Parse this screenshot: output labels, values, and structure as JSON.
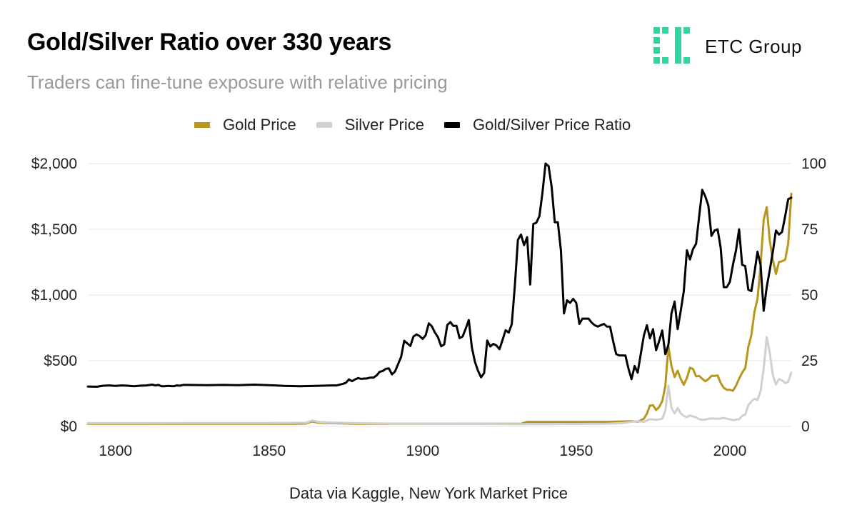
{
  "title": "Gold/Silver Ratio over 330 years",
  "subtitle": "Traders can fine-tune exposure with relative pricing",
  "brand": {
    "name": "ETC Group",
    "logo_color": "#2fd6a3"
  },
  "source": "Data via Kaggle, New York Market Price",
  "chart_data": {
    "type": "line",
    "title": "Gold/Silver Ratio over 330 years",
    "xlabel": "",
    "ylabel": "",
    "xlim": [
      1791,
      2020
    ],
    "ylim": [
      0,
      2000
    ],
    "y2lim": [
      0,
      100
    ],
    "x_ticks": [
      1800,
      1850,
      1900,
      1950,
      2000
    ],
    "y_ticks": [
      "$0",
      "$500",
      "$1,000",
      "$1,500",
      "$2,000"
    ],
    "y2_ticks": [
      "0",
      "25",
      "50",
      "75",
      "100"
    ],
    "grid": true,
    "legend_position": "top",
    "series": [
      {
        "name": "Gold Price",
        "axis": "left",
        "color": "#b8961c",
        "points": [
          [
            1791,
            20
          ],
          [
            1830,
            20
          ],
          [
            1860,
            20
          ],
          [
            1862,
            22
          ],
          [
            1864,
            38
          ],
          [
            1866,
            28
          ],
          [
            1870,
            25
          ],
          [
            1878,
            20
          ],
          [
            1932,
            20
          ],
          [
            1934,
            35
          ],
          [
            1940,
            35
          ],
          [
            1960,
            35
          ],
          [
            1968,
            39
          ],
          [
            1970,
            36
          ],
          [
            1972,
            58
          ],
          [
            1973,
            97
          ],
          [
            1974,
            159
          ],
          [
            1975,
            161
          ],
          [
            1976,
            125
          ],
          [
            1977,
            148
          ],
          [
            1978,
            193
          ],
          [
            1979,
            306
          ],
          [
            1980,
            612
          ],
          [
            1981,
            460
          ],
          [
            1982,
            376
          ],
          [
            1983,
            424
          ],
          [
            1984,
            361
          ],
          [
            1985,
            317
          ],
          [
            1986,
            368
          ],
          [
            1987,
            447
          ],
          [
            1988,
            437
          ],
          [
            1989,
            381
          ],
          [
            1990,
            384
          ],
          [
            1991,
            362
          ],
          [
            1992,
            344
          ],
          [
            1993,
            360
          ],
          [
            1994,
            384
          ],
          [
            1995,
            384
          ],
          [
            1996,
            388
          ],
          [
            1997,
            331
          ],
          [
            1998,
            294
          ],
          [
            1999,
            279
          ],
          [
            2000,
            279
          ],
          [
            2001,
            271
          ],
          [
            2002,
            310
          ],
          [
            2003,
            363
          ],
          [
            2004,
            409
          ],
          [
            2005,
            444
          ],
          [
            2006,
            603
          ],
          [
            2007,
            695
          ],
          [
            2008,
            872
          ],
          [
            2009,
            972
          ],
          [
            2010,
            1225
          ],
          [
            2011,
            1572
          ],
          [
            2012,
            1669
          ],
          [
            2013,
            1411
          ],
          [
            2014,
            1266
          ],
          [
            2015,
            1160
          ],
          [
            2016,
            1251
          ],
          [
            2017,
            1257
          ],
          [
            2018,
            1268
          ],
          [
            2019,
            1393
          ],
          [
            2020,
            1770
          ]
        ]
      },
      {
        "name": "Silver Price",
        "axis": "left",
        "color": "#d0d0d0",
        "points": [
          [
            1791,
            25
          ],
          [
            1850,
            26
          ],
          [
            1862,
            28
          ],
          [
            1864,
            45
          ],
          [
            1866,
            35
          ],
          [
            1870,
            30
          ],
          [
            1878,
            25
          ],
          [
            1890,
            22
          ],
          [
            1930,
            18
          ],
          [
            1940,
            18
          ],
          [
            1960,
            20
          ],
          [
            1965,
            25
          ],
          [
            1968,
            35
          ],
          [
            1970,
            40
          ],
          [
            1972,
            35
          ],
          [
            1974,
            55
          ],
          [
            1976,
            50
          ],
          [
            1978,
            58
          ],
          [
            1979,
            120
          ],
          [
            1980,
            310
          ],
          [
            1981,
            140
          ],
          [
            1982,
            100
          ],
          [
            1983,
            140
          ],
          [
            1984,
            100
          ],
          [
            1985,
            80
          ],
          [
            1986,
            70
          ],
          [
            1987,
            85
          ],
          [
            1988,
            75
          ],
          [
            1989,
            70
          ],
          [
            1990,
            55
          ],
          [
            1991,
            50
          ],
          [
            1992,
            52
          ],
          [
            1993,
            58
          ],
          [
            1994,
            60
          ],
          [
            1995,
            60
          ],
          [
            1996,
            58
          ],
          [
            1997,
            60
          ],
          [
            1998,
            65
          ],
          [
            1999,
            58
          ],
          [
            2000,
            55
          ],
          [
            2001,
            48
          ],
          [
            2002,
            52
          ],
          [
            2003,
            55
          ],
          [
            2004,
            80
          ],
          [
            2005,
            90
          ],
          [
            2006,
            160
          ],
          [
            2007,
            190
          ],
          [
            2008,
            210
          ],
          [
            2009,
            200
          ],
          [
            2010,
            270
          ],
          [
            2011,
            440
          ],
          [
            2012,
            680
          ],
          [
            2013,
            560
          ],
          [
            2014,
            390
          ],
          [
            2015,
            320
          ],
          [
            2016,
            360
          ],
          [
            2017,
            350
          ],
          [
            2018,
            330
          ],
          [
            2019,
            340
          ],
          [
            2020,
            410
          ]
        ]
      },
      {
        "name": "Gold/Silver Price Ratio",
        "axis": "right",
        "color": "#000000",
        "points": [
          [
            1791,
            15.2
          ],
          [
            1794,
            15.1
          ],
          [
            1796,
            15.5
          ],
          [
            1798,
            15.6
          ],
          [
            1800,
            15.4
          ],
          [
            1802,
            15.6
          ],
          [
            1804,
            15.5
          ],
          [
            1806,
            15.3
          ],
          [
            1808,
            15.5
          ],
          [
            1810,
            15.6
          ],
          [
            1812,
            15.9
          ],
          [
            1813,
            15.6
          ],
          [
            1814,
            15.8
          ],
          [
            1815,
            15.3
          ],
          [
            1816,
            15.3
          ],
          [
            1817,
            15.4
          ],
          [
            1819,
            15.3
          ],
          [
            1820,
            15.6
          ],
          [
            1821,
            15.5
          ],
          [
            1822,
            15.8
          ],
          [
            1823,
            15.8
          ],
          [
            1830,
            15.7
          ],
          [
            1835,
            15.8
          ],
          [
            1840,
            15.7
          ],
          [
            1845,
            15.9
          ],
          [
            1850,
            15.7
          ],
          [
            1855,
            15.4
          ],
          [
            1860,
            15.3
          ],
          [
            1865,
            15.4
          ],
          [
            1870,
            15.6
          ],
          [
            1872,
            15.6
          ],
          [
            1874,
            16.2
          ],
          [
            1875,
            16.6
          ],
          [
            1876,
            17.9
          ],
          [
            1877,
            17.2
          ],
          [
            1878,
            17.9
          ],
          [
            1879,
            18.4
          ],
          [
            1880,
            18.1
          ],
          [
            1881,
            18.2
          ],
          [
            1882,
            18.3
          ],
          [
            1883,
            18.6
          ],
          [
            1884,
            18.6
          ],
          [
            1885,
            19.4
          ],
          [
            1886,
            20.8
          ],
          [
            1887,
            21.1
          ],
          [
            1888,
            21.9
          ],
          [
            1889,
            22.1
          ],
          [
            1890,
            19.8
          ],
          [
            1891,
            20.9
          ],
          [
            1892,
            23.7
          ],
          [
            1893,
            26.5
          ],
          [
            1894,
            32.6
          ],
          [
            1895,
            31.6
          ],
          [
            1896,
            30.6
          ],
          [
            1897,
            34.2
          ],
          [
            1898,
            35.0
          ],
          [
            1899,
            34.4
          ],
          [
            1900,
            33.3
          ],
          [
            1901,
            34.7
          ],
          [
            1902,
            39.2
          ],
          [
            1903,
            38.1
          ],
          [
            1904,
            35.7
          ],
          [
            1905,
            33.9
          ],
          [
            1906,
            30.5
          ],
          [
            1907,
            31.2
          ],
          [
            1908,
            38.6
          ],
          [
            1909,
            39.7
          ],
          [
            1910,
            38.2
          ],
          [
            1911,
            38.3
          ],
          [
            1912,
            33.6
          ],
          [
            1913,
            34.2
          ],
          [
            1914,
            37.2
          ],
          [
            1915,
            40.5
          ],
          [
            1916,
            30.1
          ],
          [
            1917,
            24.6
          ],
          [
            1918,
            21.2
          ],
          [
            1919,
            18.7
          ],
          [
            1920,
            20.3
          ],
          [
            1921,
            32.7
          ],
          [
            1922,
            30.4
          ],
          [
            1923,
            31.4
          ],
          [
            1924,
            30.8
          ],
          [
            1925,
            29.4
          ],
          [
            1926,
            32.9
          ],
          [
            1927,
            36.6
          ],
          [
            1928,
            35.7
          ],
          [
            1929,
            38.9
          ],
          [
            1930,
            53.5
          ],
          [
            1931,
            71.0
          ],
          [
            1932,
            73.0
          ],
          [
            1933,
            69.0
          ],
          [
            1934,
            72.0
          ],
          [
            1935,
            54.0
          ],
          [
            1936,
            77.0
          ],
          [
            1937,
            77.5
          ],
          [
            1938,
            80.0
          ],
          [
            1939,
            89.0
          ],
          [
            1940,
            100.0
          ],
          [
            1941,
            99.0
          ],
          [
            1942,
            91.0
          ],
          [
            1943,
            77.7
          ],
          [
            1944,
            77.7
          ],
          [
            1945,
            67.0
          ],
          [
            1946,
            43.0
          ],
          [
            1947,
            48.0
          ],
          [
            1948,
            47.0
          ],
          [
            1949,
            48.5
          ],
          [
            1950,
            47.0
          ],
          [
            1951,
            39.0
          ],
          [
            1952,
            41.0
          ],
          [
            1953,
            41.0
          ],
          [
            1954,
            41.0
          ],
          [
            1955,
            39.5
          ],
          [
            1956,
            38.5
          ],
          [
            1957,
            38.0
          ],
          [
            1958,
            38.5
          ],
          [
            1959,
            39.0
          ],
          [
            1960,
            38.0
          ],
          [
            1961,
            38.0
          ],
          [
            1962,
            32.5
          ],
          [
            1963,
            27.5
          ],
          [
            1964,
            27.0
          ],
          [
            1965,
            27.0
          ],
          [
            1966,
            27.0
          ],
          [
            1967,
            22.0
          ],
          [
            1968,
            18.0
          ],
          [
            1969,
            23.0
          ],
          [
            1970,
            20.5
          ],
          [
            1971,
            27.5
          ],
          [
            1972,
            34.5
          ],
          [
            1973,
            38.5
          ],
          [
            1974,
            33.5
          ],
          [
            1975,
            37.0
          ],
          [
            1976,
            29.0
          ],
          [
            1977,
            32.5
          ],
          [
            1978,
            36.5
          ],
          [
            1979,
            27.5
          ],
          [
            1980,
            31.0
          ],
          [
            1981,
            43.0
          ],
          [
            1982,
            47.5
          ],
          [
            1983,
            37.0
          ],
          [
            1984,
            44.0
          ],
          [
            1985,
            51.5
          ],
          [
            1986,
            67.0
          ],
          [
            1987,
            63.5
          ],
          [
            1988,
            67.5
          ],
          [
            1989,
            69.5
          ],
          [
            1990,
            80.0
          ],
          [
            1991,
            90.0
          ],
          [
            1992,
            87.5
          ],
          [
            1993,
            84.0
          ],
          [
            1994,
            72.5
          ],
          [
            1995,
            74.5
          ],
          [
            1996,
            75.0
          ],
          [
            1997,
            68.0
          ],
          [
            1998,
            53.0
          ],
          [
            1999,
            53.0
          ],
          [
            2000,
            55.0
          ],
          [
            2001,
            61.5
          ],
          [
            2002,
            67.0
          ],
          [
            2003,
            75.0
          ],
          [
            2004,
            61.5
          ],
          [
            2005,
            61.0
          ],
          [
            2006,
            52.0
          ],
          [
            2007,
            51.5
          ],
          [
            2008,
            58.5
          ],
          [
            2009,
            66.5
          ],
          [
            2010,
            61.5
          ],
          [
            2011,
            44.0
          ],
          [
            2012,
            53.0
          ],
          [
            2013,
            59.5
          ],
          [
            2014,
            66.5
          ],
          [
            2015,
            74.5
          ],
          [
            2016,
            73.0
          ],
          [
            2017,
            74.0
          ],
          [
            2018,
            80.0
          ],
          [
            2019,
            86.5
          ],
          [
            2020,
            87.0
          ]
        ]
      }
    ]
  }
}
